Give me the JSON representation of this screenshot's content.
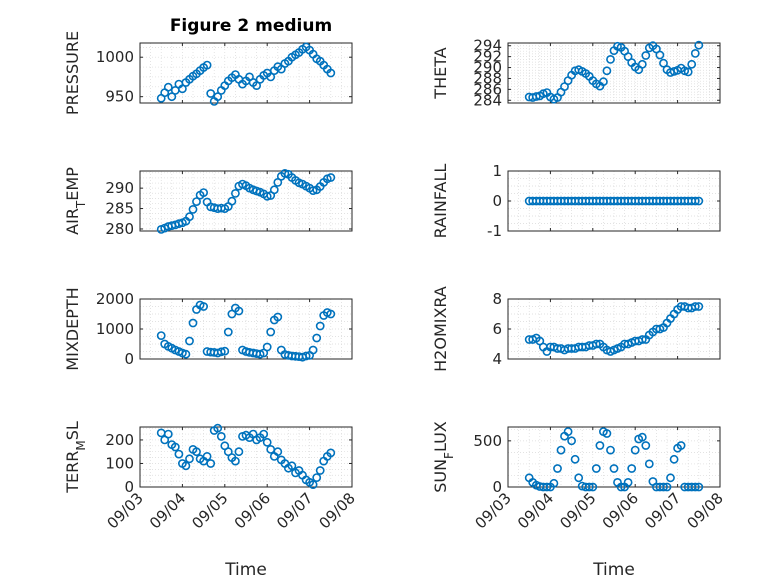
{
  "figure_title": "Figure 2 medium",
  "colors": {
    "marker": "#0072bd",
    "axes": "#262626",
    "grid": "#d9d9d9"
  },
  "chart_data": [
    {
      "id": "pressure",
      "type": "scatter",
      "title": "Figure 2 medium",
      "ylabel_parts": [
        "PRESSURE"
      ],
      "xlabel": "",
      "xlim": [
        "09/03",
        "09/08"
      ],
      "ylim": [
        942,
        1018
      ],
      "yticks": [
        950,
        1000
      ],
      "xticks": [
        "09/03",
        "09/04",
        "09/05",
        "09/06",
        "09/07",
        "09/08"
      ],
      "grid": true,
      "x": [
        "09/03 12:00",
        "09/03 14:00",
        "09/03 16:00",
        "09/03 18:00",
        "09/03 20:00",
        "09/03 22:00",
        "09/04 00:00",
        "09/04 02:00",
        "09/04 04:00",
        "09/04 06:00",
        "09/04 08:00",
        "09/04 10:00",
        "09/04 12:00",
        "09/04 14:00",
        "09/04 16:00",
        "09/04 18:00",
        "09/04 20:00",
        "09/04 22:00",
        "09/05 00:00",
        "09/05 02:00",
        "09/05 04:00",
        "09/05 06:00",
        "09/05 08:00",
        "09/05 10:00",
        "09/05 12:00",
        "09/05 14:00",
        "09/05 16:00",
        "09/05 18:00",
        "09/05 20:00",
        "09/05 22:00",
        "09/06 00:00",
        "09/06 02:00",
        "09/06 04:00",
        "09/06 06:00",
        "09/06 08:00",
        "09/06 10:00",
        "09/06 12:00",
        "09/06 14:00",
        "09/06 16:00",
        "09/06 18:00",
        "09/06 20:00",
        "09/06 22:00",
        "09/07 00:00",
        "09/07 02:00",
        "09/07 04:00",
        "09/07 06:00",
        "09/07 08:00",
        "09/07 10:00",
        "09/07 12:00"
      ],
      "y": [
        948,
        955,
        962,
        950,
        958,
        966,
        960,
        968,
        972,
        976,
        979,
        983,
        987,
        990,
        954,
        944,
        950,
        958,
        964,
        970,
        974,
        978,
        972,
        966,
        970,
        975,
        968,
        964,
        972,
        977,
        980,
        975,
        983,
        988,
        985,
        992,
        995,
        1000,
        1003,
        1006,
        1010,
        1013,
        1009,
        1004,
        998,
        995,
        990,
        985,
        980
      ]
    },
    {
      "id": "theta",
      "type": "scatter",
      "ylabel_parts": [
        "THETA"
      ],
      "xlabel": "",
      "xlim": [
        "09/03",
        "09/08"
      ],
      "ylim": [
        283.5,
        294.5
      ],
      "yticks": [
        284,
        286,
        288,
        290,
        292,
        294
      ],
      "xticks": [
        "09/03",
        "09/04",
        "09/05",
        "09/06",
        "09/07",
        "09/08"
      ],
      "grid": true,
      "x": [
        "09/03 12:00",
        "09/03 14:00",
        "09/03 16:00",
        "09/03 18:00",
        "09/03 20:00",
        "09/03 22:00",
        "09/04 00:00",
        "09/04 02:00",
        "09/04 04:00",
        "09/04 06:00",
        "09/04 08:00",
        "09/04 10:00",
        "09/04 12:00",
        "09/04 14:00",
        "09/04 16:00",
        "09/04 18:00",
        "09/04 20:00",
        "09/04 22:00",
        "09/05 00:00",
        "09/05 02:00",
        "09/05 04:00",
        "09/05 06:00",
        "09/05 08:00",
        "09/05 10:00",
        "09/05 12:00",
        "09/05 14:00",
        "09/05 16:00",
        "09/05 18:00",
        "09/05 20:00",
        "09/05 22:00",
        "09/06 00:00",
        "09/06 02:00",
        "09/06 04:00",
        "09/06 06:00",
        "09/06 08:00",
        "09/06 10:00",
        "09/06 12:00",
        "09/06 14:00",
        "09/06 16:00",
        "09/06 18:00",
        "09/06 20:00",
        "09/06 22:00",
        "09/07 00:00",
        "09/07 02:00",
        "09/07 04:00",
        "09/07 06:00",
        "09/07 08:00",
        "09/07 10:00",
        "09/07 12:00"
      ],
      "y": [
        284.6,
        284.5,
        284.7,
        284.8,
        285.2,
        285.4,
        284.6,
        284.2,
        284.5,
        285.5,
        286.5,
        287.6,
        288.6,
        289.4,
        289.6,
        289.3,
        288.9,
        288.4,
        287.6,
        287.0,
        286.6,
        287.4,
        289.4,
        291.5,
        293.1,
        293.9,
        293.7,
        293.0,
        292.0,
        290.9,
        290.1,
        289.6,
        290.6,
        292.2,
        293.6,
        294.0,
        293.4,
        292.3,
        290.8,
        289.6,
        289.1,
        289.3,
        289.5,
        289.9,
        289.4,
        289.2,
        290.6,
        292.6,
        294.1
      ]
    },
    {
      "id": "air_temp",
      "type": "scatter",
      "ylabel_parts": [
        "AIR",
        "T",
        "EMP"
      ],
      "xlabel": "",
      "xlim": [
        "09/03",
        "09/08"
      ],
      "ylim": [
        279.5,
        294.2
      ],
      "yticks": [
        280,
        285,
        290
      ],
      "xticks": [
        "09/03",
        "09/04",
        "09/05",
        "09/06",
        "09/07",
        "09/08"
      ],
      "grid": true,
      "x": [
        "09/03 12:00",
        "09/03 14:00",
        "09/03 16:00",
        "09/03 18:00",
        "09/03 20:00",
        "09/03 22:00",
        "09/04 00:00",
        "09/04 02:00",
        "09/04 04:00",
        "09/04 06:00",
        "09/04 08:00",
        "09/04 10:00",
        "09/04 12:00",
        "09/04 14:00",
        "09/04 16:00",
        "09/04 18:00",
        "09/04 20:00",
        "09/04 22:00",
        "09/05 00:00",
        "09/05 02:00",
        "09/05 04:00",
        "09/05 06:00",
        "09/05 08:00",
        "09/05 10:00",
        "09/05 12:00",
        "09/05 14:00",
        "09/05 16:00",
        "09/05 18:00",
        "09/05 20:00",
        "09/05 22:00",
        "09/06 00:00",
        "09/06 02:00",
        "09/06 04:00",
        "09/06 06:00",
        "09/06 08:00",
        "09/06 10:00",
        "09/06 12:00",
        "09/06 14:00",
        "09/06 16:00",
        "09/06 18:00",
        "09/06 20:00",
        "09/06 22:00",
        "09/07 00:00",
        "09/07 02:00",
        "09/07 04:00",
        "09/07 06:00",
        "09/07 08:00",
        "09/07 10:00",
        "09/07 12:00"
      ],
      "y": [
        279.9,
        280.2,
        280.6,
        280.8,
        281.0,
        281.3,
        281.5,
        281.9,
        283.0,
        284.8,
        286.7,
        288.3,
        288.9,
        286.6,
        285.4,
        285.2,
        285.0,
        285.1,
        285.0,
        285.5,
        286.8,
        288.7,
        290.5,
        291.0,
        290.6,
        290.0,
        289.6,
        289.3,
        289.0,
        288.6,
        288.0,
        288.2,
        289.6,
        291.4,
        292.9,
        293.6,
        293.4,
        292.6,
        291.9,
        291.3,
        291.0,
        290.5,
        290.0,
        289.4,
        289.6,
        290.4,
        291.4,
        292.3,
        292.6
      ]
    },
    {
      "id": "rainfall",
      "type": "scatter",
      "ylabel_parts": [
        "RAINFALL"
      ],
      "xlabel": "",
      "xlim": [
        "09/03",
        "09/08"
      ],
      "ylim": [
        -1,
        1
      ],
      "yticks": [
        -1,
        0,
        1
      ],
      "xticks": [
        "09/03",
        "09/04",
        "09/05",
        "09/06",
        "09/07",
        "09/08"
      ],
      "grid": true,
      "x": [
        "09/03 12:00",
        "09/03 14:00",
        "09/03 16:00",
        "09/03 18:00",
        "09/03 20:00",
        "09/03 22:00",
        "09/04 00:00",
        "09/04 02:00",
        "09/04 04:00",
        "09/04 06:00",
        "09/04 08:00",
        "09/04 10:00",
        "09/04 12:00",
        "09/04 14:00",
        "09/04 16:00",
        "09/04 18:00",
        "09/04 20:00",
        "09/04 22:00",
        "09/05 00:00",
        "09/05 02:00",
        "09/05 04:00",
        "09/05 06:00",
        "09/05 08:00",
        "09/05 10:00",
        "09/05 12:00",
        "09/05 14:00",
        "09/05 16:00",
        "09/05 18:00",
        "09/05 20:00",
        "09/05 22:00",
        "09/06 00:00",
        "09/06 02:00",
        "09/06 04:00",
        "09/06 06:00",
        "09/06 08:00",
        "09/06 10:00",
        "09/06 12:00",
        "09/06 14:00",
        "09/06 16:00",
        "09/06 18:00",
        "09/06 20:00",
        "09/06 22:00",
        "09/07 00:00",
        "09/07 02:00",
        "09/07 04:00",
        "09/07 06:00",
        "09/07 08:00",
        "09/07 10:00",
        "09/07 12:00"
      ],
      "y": [
        0,
        0,
        0,
        0,
        0,
        0,
        0,
        0,
        0,
        0,
        0,
        0,
        0,
        0,
        0,
        0,
        0,
        0,
        0,
        0,
        0,
        0,
        0,
        0,
        0,
        0,
        0,
        0,
        0,
        0,
        0,
        0,
        0,
        0,
        0,
        0,
        0,
        0,
        0,
        0,
        0,
        0,
        0,
        0,
        0,
        0,
        0,
        0,
        0
      ]
    },
    {
      "id": "mixdepth",
      "type": "scatter",
      "ylabel_parts": [
        "MIXDEPTH"
      ],
      "xlabel": "",
      "xlim": [
        "09/03",
        "09/08"
      ],
      "ylim": [
        0,
        2000
      ],
      "yticks": [
        0,
        1000,
        2000
      ],
      "xticks": [
        "09/03",
        "09/04",
        "09/05",
        "09/06",
        "09/07",
        "09/08"
      ],
      "grid": true,
      "x": [
        "09/03 12:00",
        "09/03 14:00",
        "09/03 16:00",
        "09/03 18:00",
        "09/03 20:00",
        "09/03 22:00",
        "09/04 00:00",
        "09/04 02:00",
        "09/04 04:00",
        "09/04 06:00",
        "09/04 08:00",
        "09/04 10:00",
        "09/04 12:00",
        "09/04 14:00",
        "09/04 16:00",
        "09/04 18:00",
        "09/04 20:00",
        "09/04 22:00",
        "09/05 00:00",
        "09/05 02:00",
        "09/05 04:00",
        "09/05 06:00",
        "09/05 08:00",
        "09/05 10:00",
        "09/05 12:00",
        "09/05 14:00",
        "09/05 16:00",
        "09/05 18:00",
        "09/05 20:00",
        "09/05 22:00",
        "09/06 00:00",
        "09/06 02:00",
        "09/06 04:00",
        "09/06 06:00",
        "09/06 08:00",
        "09/06 10:00",
        "09/06 12:00",
        "09/06 14:00",
        "09/06 16:00",
        "09/06 18:00",
        "09/06 20:00",
        "09/06 22:00",
        "09/07 00:00",
        "09/07 02:00",
        "09/07 04:00",
        "09/07 06:00",
        "09/07 08:00",
        "09/07 10:00",
        "09/07 12:00"
      ],
      "y": [
        780,
        500,
        420,
        360,
        300,
        250,
        200,
        160,
        600,
        1200,
        1650,
        1800,
        1750,
        250,
        230,
        220,
        200,
        240,
        260,
        900,
        1500,
        1700,
        1600,
        300,
        250,
        220,
        200,
        180,
        160,
        200,
        400,
        900,
        1300,
        1400,
        300,
        150,
        120,
        100,
        90,
        80,
        60,
        100,
        120,
        300,
        700,
        1100,
        1450,
        1550,
        1500
      ]
    },
    {
      "id": "h2omixra",
      "type": "scatter",
      "ylabel_parts": [
        "H2OMIXRA"
      ],
      "xlabel": "",
      "xlim": [
        "09/03",
        "09/08"
      ],
      "ylim": [
        4,
        8
      ],
      "yticks": [
        4,
        6,
        8
      ],
      "xticks": [
        "09/03",
        "09/04",
        "09/05",
        "09/06",
        "09/07",
        "09/08"
      ],
      "grid": true,
      "x": [
        "09/03 12:00",
        "09/03 14:00",
        "09/03 16:00",
        "09/03 18:00",
        "09/03 20:00",
        "09/03 22:00",
        "09/04 00:00",
        "09/04 02:00",
        "09/04 04:00",
        "09/04 06:00",
        "09/04 08:00",
        "09/04 10:00",
        "09/04 12:00",
        "09/04 14:00",
        "09/04 16:00",
        "09/04 18:00",
        "09/04 20:00",
        "09/04 22:00",
        "09/05 00:00",
        "09/05 02:00",
        "09/05 04:00",
        "09/05 06:00",
        "09/05 08:00",
        "09/05 10:00",
        "09/05 12:00",
        "09/05 14:00",
        "09/05 16:00",
        "09/05 18:00",
        "09/05 20:00",
        "09/05 22:00",
        "09/06 00:00",
        "09/06 02:00",
        "09/06 04:00",
        "09/06 06:00",
        "09/06 08:00",
        "09/06 10:00",
        "09/06 12:00",
        "09/06 14:00",
        "09/06 16:00",
        "09/06 18:00",
        "09/06 20:00",
        "09/06 22:00",
        "09/07 00:00",
        "09/07 02:00",
        "09/07 04:00",
        "09/07 06:00",
        "09/07 08:00",
        "09/07 10:00",
        "09/07 12:00"
      ],
      "y": [
        5.3,
        5.3,
        5.4,
        5.2,
        4.8,
        4.5,
        4.8,
        4.8,
        4.7,
        4.7,
        4.6,
        4.7,
        4.7,
        4.7,
        4.8,
        4.8,
        4.8,
        4.9,
        4.9,
        5.0,
        5.0,
        4.8,
        4.6,
        4.5,
        4.6,
        4.7,
        4.8,
        5.0,
        5.0,
        5.1,
        5.2,
        5.2,
        5.3,
        5.3,
        5.6,
        5.8,
        6.0,
        6.0,
        6.1,
        6.4,
        6.7,
        7.0,
        7.3,
        7.5,
        7.5,
        7.4,
        7.4,
        7.5,
        7.5
      ]
    },
    {
      "id": "terr_msl",
      "type": "scatter",
      "ylabel_parts": [
        "TERR",
        "M",
        "SL"
      ],
      "xlabel": "Time",
      "xlim": [
        "09/03",
        "09/08"
      ],
      "ylim": [
        0,
        255
      ],
      "yticks": [
        0,
        100,
        200
      ],
      "xticks": [
        "09/03",
        "09/04",
        "09/05",
        "09/06",
        "09/07",
        "09/08"
      ],
      "grid": true,
      "x": [
        "09/03 12:00",
        "09/03 14:00",
        "09/03 16:00",
        "09/03 18:00",
        "09/03 20:00",
        "09/03 22:00",
        "09/04 00:00",
        "09/04 02:00",
        "09/04 04:00",
        "09/04 06:00",
        "09/04 08:00",
        "09/04 10:00",
        "09/04 12:00",
        "09/04 14:00",
        "09/04 16:00",
        "09/04 18:00",
        "09/04 20:00",
        "09/04 22:00",
        "09/05 00:00",
        "09/05 02:00",
        "09/05 04:00",
        "09/05 06:00",
        "09/05 08:00",
        "09/05 10:00",
        "09/05 12:00",
        "09/05 14:00",
        "09/05 16:00",
        "09/05 18:00",
        "09/05 20:00",
        "09/05 22:00",
        "09/06 00:00",
        "09/06 02:00",
        "09/06 04:00",
        "09/06 06:00",
        "09/06 08:00",
        "09/06 10:00",
        "09/06 12:00",
        "09/06 14:00",
        "09/06 16:00",
        "09/06 18:00",
        "09/06 20:00",
        "09/06 22:00",
        "09/07 00:00",
        "09/07 02:00",
        "09/07 04:00",
        "09/07 06:00",
        "09/07 08:00",
        "09/07 10:00",
        "09/07 12:00"
      ],
      "y": [
        230,
        200,
        225,
        180,
        170,
        140,
        100,
        90,
        120,
        160,
        150,
        120,
        110,
        130,
        100,
        240,
        250,
        215,
        175,
        150,
        125,
        110,
        150,
        215,
        220,
        210,
        225,
        200,
        210,
        225,
        190,
        160,
        130,
        150,
        115,
        100,
        80,
        90,
        60,
        70,
        50,
        30,
        20,
        10,
        40,
        70,
        110,
        130,
        145
      ]
    },
    {
      "id": "sun_flux",
      "type": "scatter",
      "ylabel_parts": [
        "SUN",
        "F",
        "LUX"
      ],
      "xlabel": "Time",
      "xlim": [
        "09/03",
        "09/08"
      ],
      "ylim": [
        0,
        650
      ],
      "yticks": [
        0,
        500
      ],
      "xticks": [
        "09/03",
        "09/04",
        "09/05",
        "09/06",
        "09/07",
        "09/08"
      ],
      "grid": true,
      "x": [
        "09/03 12:00",
        "09/03 14:00",
        "09/03 16:00",
        "09/03 18:00",
        "09/03 20:00",
        "09/03 22:00",
        "09/04 00:00",
        "09/04 02:00",
        "09/04 04:00",
        "09/04 06:00",
        "09/04 08:00",
        "09/04 10:00",
        "09/04 12:00",
        "09/04 14:00",
        "09/04 16:00",
        "09/04 18:00",
        "09/04 20:00",
        "09/04 22:00",
        "09/05 00:00",
        "09/05 02:00",
        "09/05 04:00",
        "09/05 06:00",
        "09/05 08:00",
        "09/05 10:00",
        "09/05 12:00",
        "09/05 14:00",
        "09/05 16:00",
        "09/05 18:00",
        "09/05 20:00",
        "09/05 22:00",
        "09/06 00:00",
        "09/06 02:00",
        "09/06 04:00",
        "09/06 06:00",
        "09/06 08:00",
        "09/06 10:00",
        "09/06 12:00",
        "09/06 14:00",
        "09/06 16:00",
        "09/06 18:00",
        "09/06 20:00",
        "09/06 22:00",
        "09/07 00:00",
        "09/07 02:00",
        "09/07 04:00",
        "09/07 06:00",
        "09/07 08:00",
        "09/07 10:00",
        "09/07 12:00"
      ],
      "y": [
        100,
        50,
        20,
        5,
        0,
        0,
        0,
        40,
        200,
        400,
        550,
        600,
        500,
        300,
        100,
        10,
        0,
        0,
        0,
        200,
        450,
        600,
        580,
        400,
        200,
        50,
        0,
        0,
        50,
        200,
        400,
        520,
        540,
        450,
        250,
        60,
        0,
        0,
        0,
        0,
        100,
        300,
        420,
        450,
        0,
        0,
        0,
        0,
        0
      ]
    }
  ]
}
